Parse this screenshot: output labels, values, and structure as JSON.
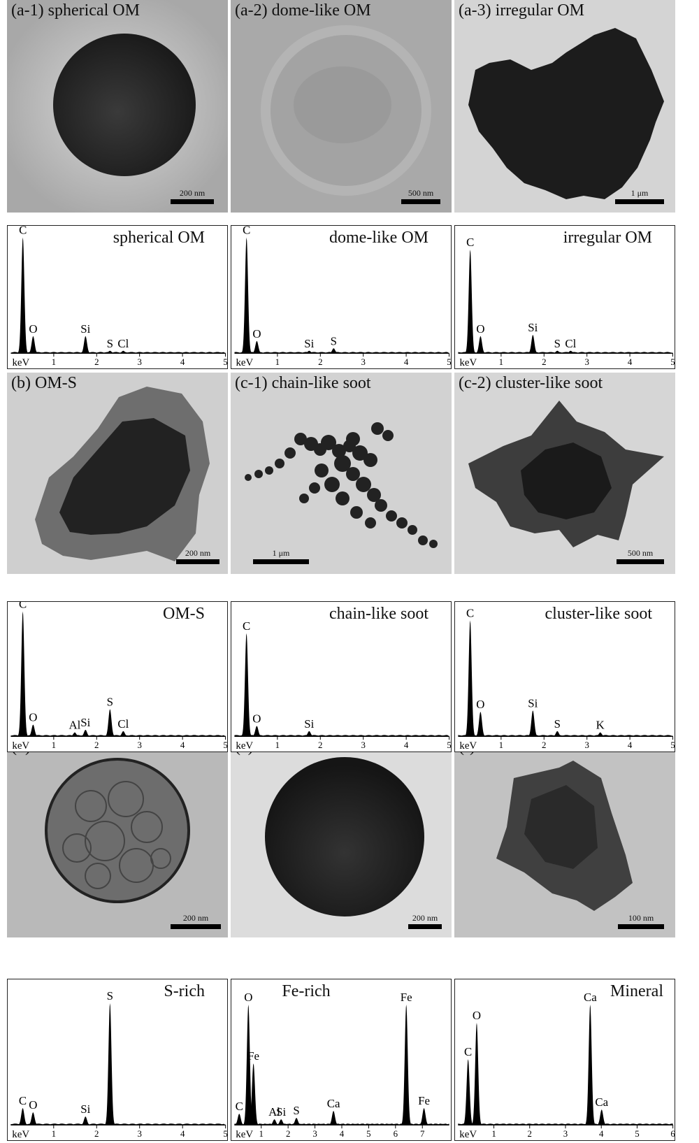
{
  "tem_panels": [
    {
      "id": "a1",
      "label": "(a-1)  spherical OM",
      "scale": "200 nm"
    },
    {
      "id": "a2",
      "label": "(a-2) dome-like OM",
      "scale": "500 nm"
    },
    {
      "id": "a3",
      "label": "(a-3) irregular OM",
      "scale": "1 μm"
    },
    {
      "id": "b",
      "label": "(b) OM-S",
      "scale": "200 nm"
    },
    {
      "id": "c1",
      "label": "(c-1)  chain-like soot",
      "scale": "1 μm"
    },
    {
      "id": "c2",
      "label": "(c-2)  cluster-like soot",
      "scale": "500 nm"
    },
    {
      "id": "d",
      "label": "(d) S-rich",
      "scale": "200 nm"
    },
    {
      "id": "e",
      "label": "(e) Fe-rich",
      "scale": "200 nm"
    },
    {
      "id": "f",
      "label": "(f)  Mineral",
      "scale": "100 nm"
    }
  ],
  "chart_data": [
    {
      "type": "area",
      "title": "spherical OM",
      "xlabel": "keV",
      "xlim": [
        0,
        5
      ],
      "ticks": [
        1,
        2,
        3,
        4,
        5
      ],
      "peaks": [
        {
          "el": "C",
          "x": 0.28,
          "h": 0.95
        },
        {
          "el": "O",
          "x": 0.52,
          "h": 0.14
        },
        {
          "el": "Si",
          "x": 1.74,
          "h": 0.14
        },
        {
          "el": "S",
          "x": 2.31,
          "h": 0.02
        },
        {
          "el": "Cl",
          "x": 2.62,
          "h": 0.02
        }
      ]
    },
    {
      "type": "area",
      "title": "dome-like OM",
      "xlabel": "keV",
      "xlim": [
        0,
        5
      ],
      "ticks": [
        1,
        2,
        3,
        4,
        5
      ],
      "peaks": [
        {
          "el": "C",
          "x": 0.28,
          "h": 0.95
        },
        {
          "el": "O",
          "x": 0.52,
          "h": 0.1
        },
        {
          "el": "Si",
          "x": 1.74,
          "h": 0.02
        },
        {
          "el": "S",
          "x": 2.31,
          "h": 0.04
        }
      ]
    },
    {
      "type": "area",
      "title": "irregular OM",
      "xlabel": "keV",
      "xlim": [
        0,
        5
      ],
      "ticks": [
        1,
        2,
        3,
        4,
        5
      ],
      "peaks": [
        {
          "el": "C",
          "x": 0.28,
          "h": 0.85
        },
        {
          "el": "O",
          "x": 0.52,
          "h": 0.14
        },
        {
          "el": "Si",
          "x": 1.74,
          "h": 0.15
        },
        {
          "el": "S",
          "x": 2.31,
          "h": 0.02
        },
        {
          "el": "Cl",
          "x": 2.62,
          "h": 0.02
        }
      ]
    },
    {
      "type": "area",
      "title": "OM-S",
      "xlabel": "keV",
      "xlim": [
        0,
        5
      ],
      "ticks": [
        1,
        2,
        3,
        4,
        5
      ],
      "peaks": [
        {
          "el": "C",
          "x": 0.28,
          "h": 0.97
        },
        {
          "el": "O",
          "x": 0.52,
          "h": 0.09
        },
        {
          "el": "Al",
          "x": 1.49,
          "h": 0.03
        },
        {
          "el": "Si",
          "x": 1.74,
          "h": 0.05
        },
        {
          "el": "S",
          "x": 2.31,
          "h": 0.21
        },
        {
          "el": "Cl",
          "x": 2.62,
          "h": 0.04
        }
      ]
    },
    {
      "type": "area",
      "title": "chain-like soot",
      "xlabel": "keV",
      "xlim": [
        0,
        5
      ],
      "ticks": [
        1,
        2,
        3,
        4,
        5
      ],
      "peaks": [
        {
          "el": "C",
          "x": 0.28,
          "h": 0.8
        },
        {
          "el": "O",
          "x": 0.52,
          "h": 0.08
        },
        {
          "el": "Si",
          "x": 1.74,
          "h": 0.04
        }
      ]
    },
    {
      "type": "area",
      "title": "cluster-like soot",
      "xlabel": "keV",
      "xlim": [
        0,
        5
      ],
      "ticks": [
        1,
        2,
        3,
        4,
        5
      ],
      "peaks": [
        {
          "el": "C",
          "x": 0.28,
          "h": 0.9
        },
        {
          "el": "O",
          "x": 0.52,
          "h": 0.19
        },
        {
          "el": "Si",
          "x": 1.74,
          "h": 0.2
        },
        {
          "el": "S",
          "x": 2.31,
          "h": 0.04
        },
        {
          "el": "K",
          "x": 3.31,
          "h": 0.03
        }
      ]
    },
    {
      "type": "area",
      "title": "S-rich",
      "xlabel": "keV",
      "xlim": [
        0,
        5
      ],
      "ticks": [
        1,
        2,
        3,
        4,
        5
      ],
      "peaks": [
        {
          "el": "C",
          "x": 0.28,
          "h": 0.12
        },
        {
          "el": "O",
          "x": 0.52,
          "h": 0.09
        },
        {
          "el": "Si",
          "x": 1.74,
          "h": 0.06
        },
        {
          "el": "S",
          "x": 2.31,
          "h": 0.87
        }
      ]
    },
    {
      "type": "area",
      "title": "Fe-rich",
      "xlabel": "keV",
      "xlim": [
        0,
        8
      ],
      "ticks": [
        1,
        2,
        3,
        4,
        5,
        6,
        7
      ],
      "peaks": [
        {
          "el": "C",
          "x": 0.18,
          "h": 0.08
        },
        {
          "el": "O",
          "x": 0.52,
          "h": 0.86
        },
        {
          "el": "Fe",
          "x": 0.71,
          "h": 0.44
        },
        {
          "el": "Al",
          "x": 1.49,
          "h": 0.04
        },
        {
          "el": "Si",
          "x": 1.74,
          "h": 0.04
        },
        {
          "el": "S",
          "x": 2.31,
          "h": 0.05
        },
        {
          "el": "Ca",
          "x": 3.69,
          "h": 0.1
        },
        {
          "el": "Fe",
          "x": 6.4,
          "h": 0.86
        },
        {
          "el": "Fe",
          "x": 7.06,
          "h": 0.12
        }
      ]
    },
    {
      "type": "area",
      "title": "Mineral",
      "xlabel": "keV",
      "xlim": [
        0,
        6
      ],
      "ticks": [
        1,
        2,
        3,
        4,
        5,
        6
      ],
      "peaks": [
        {
          "el": "C",
          "x": 0.28,
          "h": 0.47
        },
        {
          "el": "O",
          "x": 0.52,
          "h": 0.73
        },
        {
          "el": "Ca",
          "x": 3.69,
          "h": 0.86
        },
        {
          "el": "Ca",
          "x": 4.01,
          "h": 0.11
        }
      ]
    }
  ]
}
